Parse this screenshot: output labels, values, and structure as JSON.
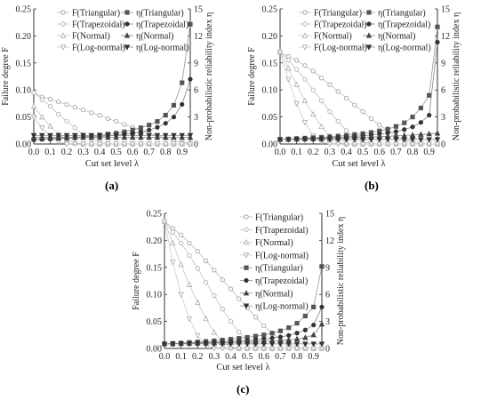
{
  "chart_data": [
    {
      "panel": "(a)",
      "type": "line",
      "xlabel": "Cut set level λ",
      "ylabel_left": "Failure degree F",
      "ylabel_right": "Non-probabilistic reliability index η",
      "x_ticks": [
        "0.0",
        "0.1",
        "0.2",
        "0.3",
        "0.4",
        "0.5",
        "0.6",
        "0.7",
        "0.8",
        "0.9"
      ],
      "ylim_left": [
        0,
        0.25
      ],
      "y_ticks_left": [
        "0.00",
        "0.05",
        "0.10",
        "0.15",
        "0.20",
        "0.25"
      ],
      "ylim_right": [
        0,
        15
      ],
      "y_ticks_right": [
        "0",
        "3",
        "6",
        "9",
        "12",
        "15"
      ],
      "x": [
        0.0,
        0.05,
        0.1,
        0.15,
        0.2,
        0.25,
        0.3,
        0.35,
        0.4,
        0.45,
        0.5,
        0.55,
        0.6,
        0.65,
        0.7,
        0.75,
        0.8,
        0.85,
        0.9,
        0.95
      ],
      "series": [
        {
          "name": "F(Triangular)",
          "axis": "left",
          "marker": "circle-open",
          "values": [
            0.095,
            0.087,
            0.083,
            0.078,
            0.073,
            0.068,
            0.063,
            0.058,
            0.053,
            0.047,
            0.042,
            0.036,
            0.031,
            0.025,
            0.02,
            0.015,
            0.011,
            0.006,
            0.003,
            0.001
          ]
        },
        {
          "name": "F(Trapezoidal)",
          "axis": "left",
          "marker": "circle-open-light",
          "values": [
            0.095,
            0.082,
            0.07,
            0.055,
            0.042,
            0.03,
            0.018,
            0.01,
            0.004,
            0.001,
            0,
            0,
            0,
            0,
            0,
            0,
            0,
            0,
            0,
            0
          ]
        },
        {
          "name": "F(Normal)",
          "axis": "left",
          "marker": "triangle-up-open",
          "values": [
            0.07,
            0.05,
            0.033,
            0.018,
            0.008,
            0.002,
            0,
            0,
            0,
            0,
            0,
            0,
            0,
            0,
            0,
            0,
            0,
            0,
            0,
            0
          ]
        },
        {
          "name": "F(Log-normal)",
          "axis": "left",
          "marker": "triangle-down-open",
          "values": [
            0.05,
            0.03,
            0.015,
            0.004,
            0,
            0,
            0,
            0,
            0,
            0,
            0,
            0,
            0,
            0,
            0,
            0,
            0,
            0,
            0,
            0
          ]
        },
        {
          "name": "η(Triangular)",
          "axis": "right",
          "marker": "square-filled",
          "values": [
            0.5,
            0.55,
            0.6,
            0.65,
            0.7,
            0.75,
            0.8,
            0.9,
            1.0,
            1.1,
            1.2,
            1.35,
            1.55,
            1.8,
            2.1,
            2.5,
            3.2,
            4.3,
            6.8,
            13.3
          ]
        },
        {
          "name": "η(Trapezoidal)",
          "axis": "right",
          "marker": "circle-filled",
          "values": [
            0.5,
            0.53,
            0.56,
            0.6,
            0.63,
            0.67,
            0.72,
            0.77,
            0.83,
            0.9,
            0.98,
            1.08,
            1.2,
            1.35,
            1.55,
            1.85,
            2.3,
            3.0,
            4.4,
            7.2
          ]
        },
        {
          "name": "η(Normal)",
          "axis": "right",
          "marker": "triangle-up-filled",
          "values": [
            0.72,
            0.72,
            0.72,
            0.72,
            0.72,
            0.72,
            0.72,
            0.72,
            0.72,
            0.72,
            0.72,
            0.72,
            0.72,
            0.72,
            0.72,
            0.72,
            0.72,
            0.72,
            0.72,
            0.72
          ]
        },
        {
          "name": "η(Log-normal)",
          "axis": "right",
          "marker": "triangle-down-filled",
          "values": [
            0.95,
            0.95,
            0.95,
            0.95,
            0.95,
            0.95,
            0.95,
            0.95,
            0.95,
            0.95,
            0.95,
            0.95,
            0.95,
            0.95,
            0.95,
            0.95,
            0.95,
            0.95,
            0.95,
            0.95
          ]
        }
      ]
    },
    {
      "panel": "(b)",
      "type": "line",
      "xlabel": "Cut set level λ",
      "ylabel_left": "Failure degree F",
      "ylabel_right": "Non-probabilistic reliability index η",
      "x_ticks": [
        "0.0",
        "0.1",
        "0.2",
        "0.3",
        "0.4",
        "0.5",
        "0.6",
        "0.7",
        "0.8",
        "0.9"
      ],
      "ylim_left": [
        0,
        0.25
      ],
      "y_ticks_left": [
        "0.00",
        "0.05",
        "0.10",
        "0.15",
        "0.20",
        "0.25"
      ],
      "ylim_right": [
        0,
        15
      ],
      "y_ticks_right": [
        "0",
        "3",
        "6",
        "9",
        "12",
        "15"
      ],
      "x": [
        0.0,
        0.05,
        0.1,
        0.15,
        0.2,
        0.25,
        0.3,
        0.35,
        0.4,
        0.45,
        0.5,
        0.55,
        0.6,
        0.65,
        0.7,
        0.75,
        0.8,
        0.85,
        0.9,
        0.95
      ],
      "series": [
        {
          "name": "F(Triangular)",
          "axis": "left",
          "marker": "circle-open",
          "values": [
            0.17,
            0.162,
            0.155,
            0.145,
            0.135,
            0.122,
            0.11,
            0.097,
            0.085,
            0.072,
            0.06,
            0.047,
            0.035,
            0.025,
            0.015,
            0.008,
            0.003,
            0.001,
            0,
            0
          ]
        },
        {
          "name": "F(Trapezoidal)",
          "axis": "left",
          "marker": "circle-open-light",
          "values": [
            0.17,
            0.155,
            0.138,
            0.12,
            0.1,
            0.08,
            0.06,
            0.042,
            0.025,
            0.012,
            0.004,
            0.001,
            0,
            0,
            0,
            0,
            0,
            0,
            0,
            0
          ]
        },
        {
          "name": "F(Normal)",
          "axis": "left",
          "marker": "triangle-up-open",
          "values": [
            0.17,
            0.14,
            0.11,
            0.08,
            0.055,
            0.032,
            0.015,
            0.004,
            0,
            0,
            0,
            0,
            0,
            0,
            0,
            0,
            0,
            0,
            0,
            0
          ]
        },
        {
          "name": "F(Log-normal)",
          "axis": "left",
          "marker": "triangle-down-open",
          "values": [
            0.17,
            0.12,
            0.075,
            0.04,
            0.015,
            0.003,
            0,
            0,
            0,
            0,
            0,
            0,
            0,
            0,
            0,
            0,
            0,
            0,
            0,
            0
          ]
        },
        {
          "name": "η(Triangular)",
          "axis": "right",
          "marker": "square-filled",
          "values": [
            0.5,
            0.55,
            0.6,
            0.65,
            0.7,
            0.75,
            0.8,
            0.88,
            0.95,
            1.05,
            1.15,
            1.28,
            1.45,
            1.65,
            1.95,
            2.35,
            3.0,
            4.0,
            5.4,
            13.0
          ]
        },
        {
          "name": "η(Trapezoidal)",
          "axis": "right",
          "marker": "circle-filled",
          "values": [
            0.5,
            0.53,
            0.56,
            0.59,
            0.62,
            0.66,
            0.7,
            0.74,
            0.79,
            0.85,
            0.92,
            1.0,
            1.1,
            1.22,
            1.38,
            1.6,
            1.9,
            2.4,
            3.2,
            11.3
          ]
        },
        {
          "name": "η(Normal)",
          "axis": "right",
          "marker": "triangle-up-filled",
          "values": [
            0.5,
            0.52,
            0.54,
            0.56,
            0.58,
            0.6,
            0.62,
            0.65,
            0.68,
            0.71,
            0.74,
            0.78,
            0.82,
            0.86,
            0.9,
            0.95,
            1.0,
            1.06,
            1.12,
            1.2
          ]
        },
        {
          "name": "η(Log-normal)",
          "axis": "right",
          "marker": "triangle-down-filled",
          "values": [
            0.5,
            0.5,
            0.5,
            0.5,
            0.5,
            0.5,
            0.5,
            0.5,
            0.5,
            0.5,
            0.5,
            0.5,
            0.5,
            0.5,
            0.5,
            0.5,
            0.5,
            0.5,
            0.5,
            0.5
          ]
        }
      ]
    },
    {
      "panel": "(c)",
      "type": "line",
      "xlabel": "Cut set level λ",
      "ylabel_left": "Failure degree F",
      "ylabel_right": "Non-probabilistic reliability index η",
      "x_ticks": [
        "0.0",
        "0.1",
        "0.2",
        "0.3",
        "0.4",
        "0.5",
        "0.6",
        "0.7",
        "0.8",
        "0.9"
      ],
      "ylim_left": [
        0,
        0.25
      ],
      "y_ticks_left": [
        "0.00",
        "0.05",
        "0.10",
        "0.15",
        "0.20",
        "0.25"
      ],
      "ylim_right": [
        0,
        15
      ],
      "y_ticks_right": [
        "0",
        "3",
        "6",
        "9",
        "12",
        "15"
      ],
      "x": [
        0.0,
        0.05,
        0.1,
        0.15,
        0.2,
        0.25,
        0.3,
        0.35,
        0.4,
        0.45,
        0.5,
        0.55,
        0.6,
        0.65,
        0.7,
        0.75,
        0.8,
        0.85,
        0.9,
        0.95
      ],
      "series": [
        {
          "name": "F(Triangular)",
          "axis": "left",
          "marker": "circle-open",
          "values": [
            0.235,
            0.222,
            0.21,
            0.195,
            0.18,
            0.162,
            0.145,
            0.127,
            0.11,
            0.092,
            0.075,
            0.058,
            0.042,
            0.028,
            0.016,
            0.007,
            0.002,
            0,
            0,
            0
          ]
        },
        {
          "name": "F(Trapezoidal)",
          "axis": "left",
          "marker": "circle-open-light",
          "values": [
            0.235,
            0.215,
            0.195,
            0.172,
            0.148,
            0.122,
            0.098,
            0.073,
            0.05,
            0.03,
            0.015,
            0.005,
            0.001,
            0,
            0,
            0,
            0,
            0,
            0,
            0
          ]
        },
        {
          "name": "F(Normal)",
          "axis": "left",
          "marker": "triangle-up-open",
          "values": [
            0.235,
            0.195,
            0.155,
            0.118,
            0.085,
            0.055,
            0.03,
            0.012,
            0.002,
            0,
            0,
            0,
            0,
            0,
            0,
            0,
            0,
            0,
            0,
            0
          ]
        },
        {
          "name": "F(Log-normal)",
          "axis": "left",
          "marker": "triangle-down-open",
          "values": [
            0.235,
            0.16,
            0.1,
            0.055,
            0.024,
            0.006,
            0,
            0,
            0,
            0,
            0,
            0,
            0,
            0,
            0,
            0,
            0,
            0,
            0,
            0
          ]
        },
        {
          "name": "η(Triangular)",
          "axis": "right",
          "marker": "square-filled",
          "values": [
            0.5,
            0.55,
            0.6,
            0.66,
            0.72,
            0.78,
            0.85,
            0.93,
            1.02,
            1.12,
            1.23,
            1.36,
            1.5,
            1.7,
            1.95,
            2.3,
            2.8,
            3.6,
            4.6,
            9.1
          ]
        },
        {
          "name": "η(Trapezoidal)",
          "axis": "right",
          "marker": "circle-filled",
          "values": [
            0.5,
            0.53,
            0.56,
            0.59,
            0.62,
            0.65,
            0.69,
            0.73,
            0.78,
            0.83,
            0.89,
            0.96,
            1.05,
            1.15,
            1.28,
            1.45,
            1.7,
            2.05,
            2.6,
            4.6
          ]
        },
        {
          "name": "η(Normal)",
          "axis": "right",
          "marker": "triangle-up-filled",
          "values": [
            0.5,
            0.52,
            0.54,
            0.56,
            0.58,
            0.6,
            0.62,
            0.64,
            0.67,
            0.7,
            0.73,
            0.76,
            0.8,
            0.85,
            0.9,
            0.96,
            1.05,
            1.2,
            1.5,
            2.7
          ]
        },
        {
          "name": "η(Log-normal)",
          "axis": "right",
          "marker": "triangle-down-filled",
          "values": [
            0.5,
            0.5,
            0.5,
            0.5,
            0.5,
            0.5,
            0.5,
            0.5,
            0.5,
            0.5,
            0.5,
            0.5,
            0.5,
            0.5,
            0.5,
            0.5,
            0.5,
            0.5,
            0.5,
            0.5
          ]
        }
      ]
    }
  ],
  "panel_labels": [
    "(a)",
    "(b)",
    "(c)"
  ]
}
